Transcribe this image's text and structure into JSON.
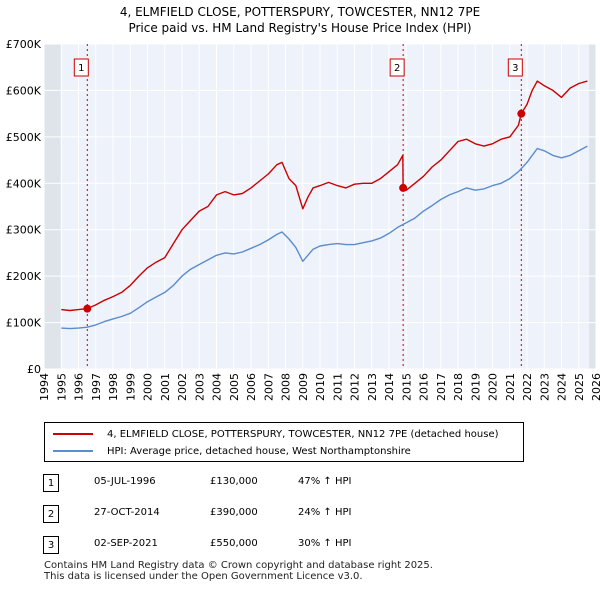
{
  "chart_data": {
    "type": "line",
    "title": "4, ELMFIELD CLOSE, POTTERSPURY, TOWCESTER, NN12 7PE",
    "subtitle": "Price paid vs. HM Land Registry's House Price Index (HPI)",
    "xlim": [
      1994,
      2026
    ],
    "ylim": [
      0,
      700000
    ],
    "y_ticks": [
      0,
      100000,
      200000,
      300000,
      400000,
      500000,
      600000,
      700000
    ],
    "y_tick_labels": [
      "£0",
      "£100K",
      "£200K",
      "£300K",
      "£400K",
      "£500K",
      "£600K",
      "£700K"
    ],
    "x_ticks": [
      1994,
      1995,
      1996,
      1997,
      1998,
      1999,
      2000,
      2001,
      2002,
      2003,
      2004,
      2005,
      2006,
      2007,
      2008,
      2009,
      2010,
      2011,
      2012,
      2013,
      2014,
      2015,
      2016,
      2017,
      2018,
      2019,
      2020,
      2021,
      2022,
      2023,
      2024,
      2025,
      2026
    ],
    "x_tick_labels": [
      "1994",
      "1995",
      "1996",
      "1997",
      "1998",
      "1999",
      "2000",
      "2001",
      "2002",
      "2003",
      "2004",
      "2005",
      "2006",
      "2007",
      "2008",
      "2009",
      "2010",
      "2011",
      "2012",
      "2013",
      "2014",
      "2015",
      "2016",
      "2017",
      "2018",
      "2019",
      "2020",
      "2021",
      "2022",
      "2023",
      "2024",
      "2025",
      "2026"
    ],
    "data_start": 1995,
    "data_end": 2025.6,
    "shaded_regions": [
      [
        1994,
        1995
      ],
      [
        2025.6,
        2026
      ]
    ],
    "sales": [
      {
        "label": "1",
        "x": 1996.51,
        "value": 130000
      },
      {
        "label": "2",
        "x": 2014.82,
        "value": 390000
      },
      {
        "label": "3",
        "x": 2021.67,
        "value": 550000
      }
    ],
    "series": [
      {
        "name": "4, ELMFIELD CLOSE, POTTERSPURY, TOWCESTER, NN12 7PE (detached house)",
        "color": "#cc0000",
        "x": [
          1995,
          1995.5,
          1996,
          1996.5,
          1996.51,
          1997,
          1997.5,
          1998,
          1998.5,
          1999,
          1999.5,
          2000,
          2000.5,
          2001,
          2001.5,
          2002,
          2002.5,
          2003,
          2003.5,
          2004,
          2004.5,
          2005,
          2005.5,
          2006,
          2006.5,
          2007,
          2007.5,
          2007.8,
          2008.2,
          2008.6,
          2009.0,
          2009.3,
          2009.6,
          2010,
          2010.5,
          2011,
          2011.5,
          2012,
          2012.5,
          2013,
          2013.5,
          2014,
          2014.5,
          2014.8,
          2014.82,
          2015,
          2015.5,
          2016,
          2016.5,
          2017,
          2017.5,
          2018,
          2018.5,
          2019,
          2019.5,
          2020,
          2020.5,
          2021,
          2021.5,
          2021.67,
          2022,
          2022.3,
          2022.6,
          2023,
          2023.5,
          2024,
          2024.5,
          2025,
          2025.5
        ],
        "values": [
          128000,
          126000,
          128000,
          130000,
          130000,
          138000,
          148000,
          156000,
          165000,
          180000,
          200000,
          218000,
          230000,
          240000,
          270000,
          300000,
          320000,
          340000,
          350000,
          375000,
          382000,
          375000,
          378000,
          390000,
          405000,
          420000,
          440000,
          445000,
          410000,
          395000,
          345000,
          370000,
          390000,
          395000,
          402000,
          395000,
          390000,
          398000,
          400000,
          400000,
          410000,
          425000,
          440000,
          460000,
          390000,
          385000,
          400000,
          415000,
          435000,
          450000,
          470000,
          490000,
          495000,
          485000,
          480000,
          485000,
          495000,
          500000,
          525000,
          550000,
          570000,
          600000,
          620000,
          610000,
          600000,
          585000,
          605000,
          615000,
          620000
        ]
      },
      {
        "name": "HPI: Average price, detached house, West Northamptonshire",
        "color": "#5b8ccc",
        "x": [
          1995,
          1995.5,
          1996,
          1996.5,
          1997,
          1997.5,
          1998,
          1998.5,
          1999,
          1999.5,
          2000,
          2000.5,
          2001,
          2001.5,
          2002,
          2002.5,
          2003,
          2003.5,
          2004,
          2004.5,
          2005,
          2005.5,
          2006,
          2006.5,
          2007,
          2007.5,
          2007.8,
          2008.2,
          2008.6,
          2009.0,
          2009.3,
          2009.6,
          2010,
          2010.5,
          2011,
          2011.5,
          2012,
          2012.5,
          2013,
          2013.5,
          2014,
          2014.5,
          2015,
          2015.5,
          2016,
          2016.5,
          2017,
          2017.5,
          2018,
          2018.5,
          2019,
          2019.5,
          2020,
          2020.5,
          2021,
          2021.5,
          2022,
          2022.3,
          2022.6,
          2023,
          2023.5,
          2024,
          2024.5,
          2025,
          2025.5
        ],
        "values": [
          88000,
          87000,
          88000,
          90000,
          95000,
          102000,
          108000,
          113000,
          120000,
          132000,
          145000,
          155000,
          165000,
          180000,
          200000,
          215000,
          225000,
          235000,
          245000,
          250000,
          248000,
          252000,
          260000,
          268000,
          278000,
          290000,
          295000,
          280000,
          262000,
          232000,
          245000,
          258000,
          265000,
          268000,
          270000,
          268000,
          268000,
          272000,
          276000,
          282000,
          292000,
          305000,
          315000,
          325000,
          340000,
          352000,
          365000,
          375000,
          382000,
          390000,
          385000,
          388000,
          395000,
          400000,
          410000,
          425000,
          445000,
          460000,
          475000,
          470000,
          460000,
          455000,
          460000,
          470000,
          480000
        ]
      }
    ]
  },
  "legend": {
    "items": [
      {
        "label": "4, ELMFIELD CLOSE, POTTERSPURY, TOWCESTER, NN12 7PE (detached house)",
        "color": "#cc0000"
      },
      {
        "label": "HPI: Average price, detached house, West Northamptonshire",
        "color": "#5b8ccc"
      }
    ]
  },
  "sales_table": [
    {
      "badge": "1",
      "date": "05-JUL-1996",
      "price": "£130,000",
      "hpi": "47% ↑ HPI"
    },
    {
      "badge": "2",
      "date": "27-OCT-2014",
      "price": "£390,000",
      "hpi": "24% ↑ HPI"
    },
    {
      "badge": "3",
      "date": "02-SEP-2021",
      "price": "£550,000",
      "hpi": "30% ↑ HPI"
    }
  ],
  "footer": {
    "line1": "Contains HM Land Registry data © Crown copyright and database right 2025.",
    "line2": "This data is licensed under the Open Government Licence v3.0."
  },
  "colors": {
    "plot_bg": "#eef2fb",
    "shade_bg": "#dfe3ea",
    "grid": "#ffffff",
    "sale_marker": "#cc0000",
    "sale_vline": "#cc0000"
  }
}
